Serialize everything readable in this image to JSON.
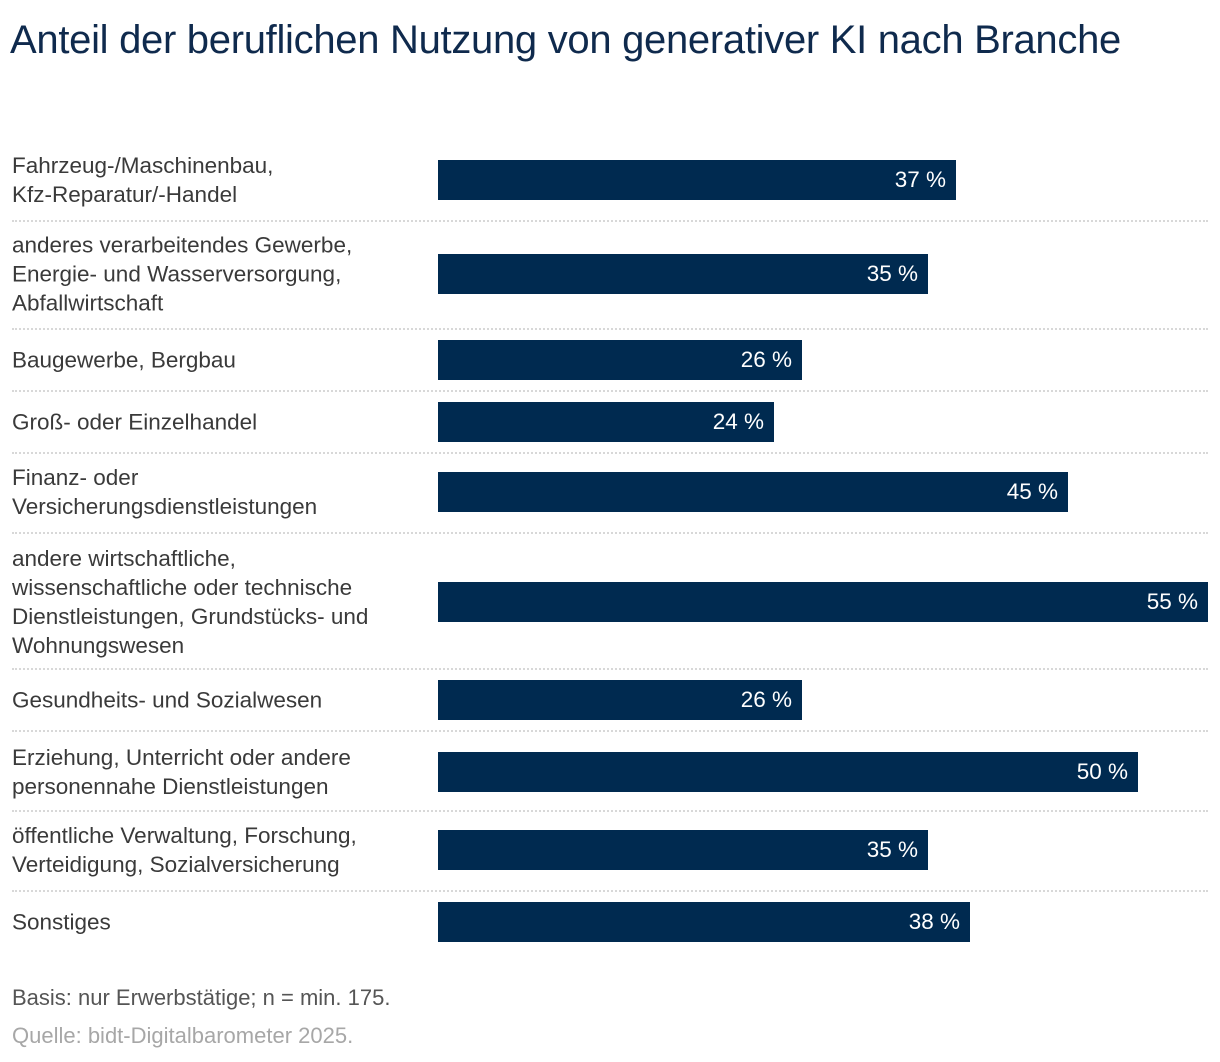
{
  "chart_data": {
    "type": "bar",
    "orientation": "horizontal",
    "title": "Anteil der beruflichen Nutzung von generativer KI nach Branche",
    "categories": [
      "Fahrzeug-/Maschinenbau,\nKfz-Reparatur/-Handel",
      "anderes verarbeitendes Gewerbe,\nEnergie- und Wasserversorgung,\nAbfallwirtschaft",
      "Baugewerbe, Bergbau",
      "Groß- oder Einzelhandel",
      "Finanz- oder\nVersicherungsdienstleistungen",
      "andere wirtschaftliche,\nwissenschaftliche oder technische\nDienstleistungen, Grundstücks- und\nWohnungswesen",
      "Gesundheits- und Sozialwesen",
      "Erziehung, Unterricht oder andere\npersonennahe Dienstleistungen",
      "öffentliche Verwaltung, Forschung,\nVerteidigung, Sozialversicherung",
      "Sonstiges"
    ],
    "values": [
      37,
      35,
      26,
      24,
      45,
      55,
      26,
      50,
      35,
      38
    ],
    "value_labels": [
      "37 %",
      "35 %",
      "26 %",
      "24 %",
      "45 %",
      "55 %",
      "26 %",
      "50 %",
      "35 %",
      "38 %"
    ],
    "unit": "%",
    "xlim": [
      0,
      55
    ],
    "grid": false,
    "bar_color": "#002a50",
    "xlabel": "",
    "ylabel": ""
  },
  "footer": {
    "note": "Basis: nur Erwerbstätige; n = min. 175.",
    "source": "Quelle: bidt-Digitalbarometer 2025."
  },
  "colors": {
    "title": "#0f2a4d",
    "bar": "#002a50",
    "bar_label": "#ffffff",
    "category_label": "#3a3a3a",
    "note": "#555555",
    "source": "#a7a7a7"
  }
}
